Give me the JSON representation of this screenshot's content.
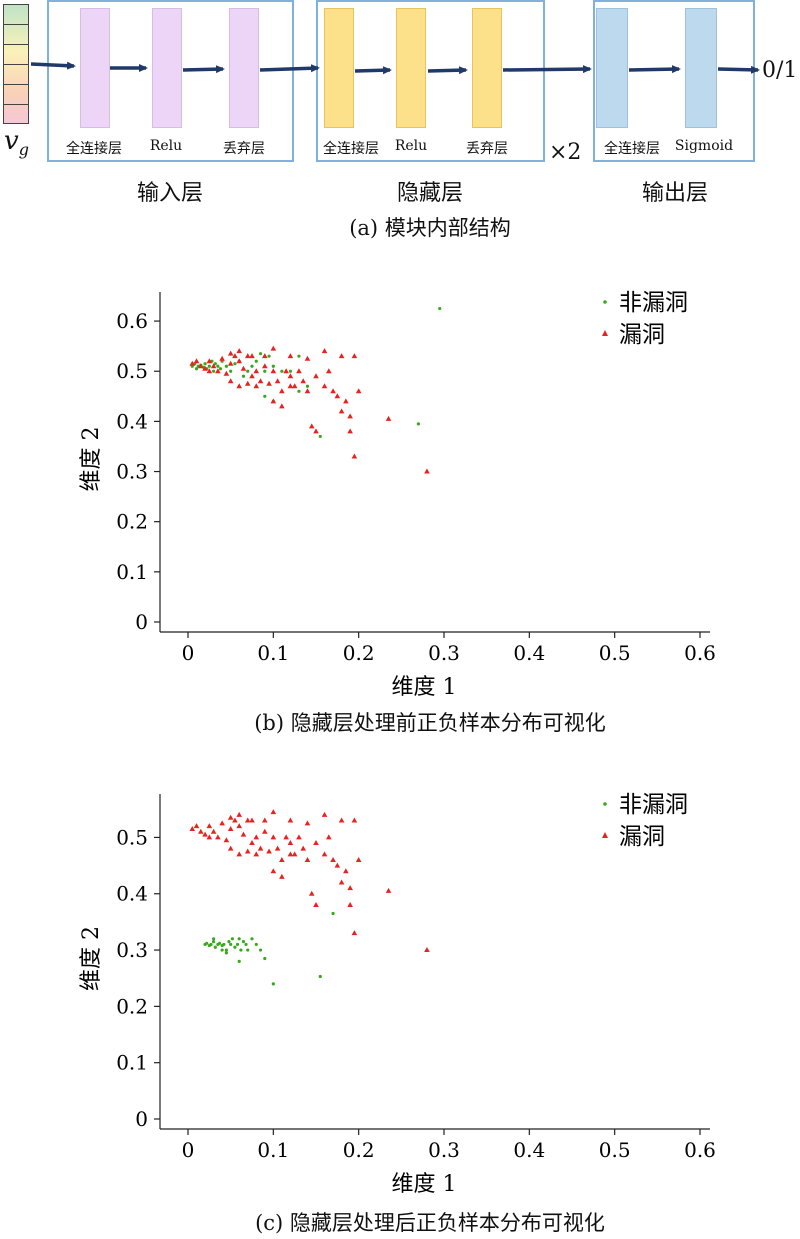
{
  "part_a": {
    "input_symbol": "v",
    "input_subscript": "g",
    "input_layer": {
      "name": "输入层",
      "items": [
        "全连接层",
        "Relu",
        "丢弃层"
      ]
    },
    "hidden_layer": {
      "name": "隐藏层",
      "items": [
        "全连接层",
        "Relu",
        "丢弃层"
      ],
      "repeat": "×2"
    },
    "output_layer": {
      "name": "输出层",
      "items": [
        "全连接层",
        "Sigmoid"
      ]
    },
    "output_label": "0/1",
    "caption": "(a) 模块内部结构",
    "colors": {
      "input": "#ecd5f6",
      "hidden": "#fde08a",
      "output": "#bcd9ee",
      "arrow": "#1f3a68",
      "frame": "#7fb0df"
    }
  },
  "chart_data": [
    {
      "type": "scatter",
      "caption": "(b) 隐藏层处理前正负样本分布可视化",
      "xlabel": "维度 1",
      "ylabel": "维度 2",
      "xlim": [
        0,
        0.6
      ],
      "ylim": [
        0,
        0.65
      ],
      "xticks": [
        "0",
        "0.1",
        "0.2",
        "0.3",
        "0.4",
        "0.5",
        "0.6"
      ],
      "yticks": [
        "0",
        "0.1",
        "0.2",
        "0.3",
        "0.4",
        "0.5",
        "0.6"
      ],
      "legend_position": "top-right",
      "series": [
        {
          "name": "非漏洞",
          "marker": "dot",
          "color": "#3aa81c",
          "points": [
            [
              0.005,
              0.51
            ],
            [
              0.008,
              0.515
            ],
            [
              0.01,
              0.505
            ],
            [
              0.012,
              0.51
            ],
            [
              0.015,
              0.512
            ],
            [
              0.018,
              0.508
            ],
            [
              0.02,
              0.515
            ],
            [
              0.022,
              0.505
            ],
            [
              0.025,
              0.51
            ],
            [
              0.028,
              0.52
            ],
            [
              0.03,
              0.5
            ],
            [
              0.032,
              0.515
            ],
            [
              0.035,
              0.51
            ],
            [
              0.038,
              0.505
            ],
            [
              0.04,
              0.52
            ],
            [
              0.045,
              0.51
            ],
            [
              0.05,
              0.5
            ],
            [
              0.055,
              0.515
            ],
            [
              0.06,
              0.52
            ],
            [
              0.065,
              0.49
            ],
            [
              0.07,
              0.5
            ],
            [
              0.075,
              0.51
            ],
            [
              0.08,
              0.52
            ],
            [
              0.085,
              0.535
            ],
            [
              0.09,
              0.5
            ],
            [
              0.095,
              0.53
            ],
            [
              0.1,
              0.51
            ],
            [
              0.11,
              0.5
            ],
            [
              0.12,
              0.5
            ],
            [
              0.13,
              0.53
            ],
            [
              0.14,
              0.47
            ],
            [
              0.09,
              0.45
            ],
            [
              0.1,
              0.44
            ],
            [
              0.13,
              0.46
            ],
            [
              0.155,
              0.37
            ],
            [
              0.27,
              0.395
            ],
            [
              0.295,
              0.625
            ]
          ]
        },
        {
          "name": "漏洞",
          "marker": "triangle",
          "color": "#e8231f",
          "points": [
            [
              0.005,
              0.515
            ],
            [
              0.01,
              0.52
            ],
            [
              0.015,
              0.51
            ],
            [
              0.02,
              0.505
            ],
            [
              0.025,
              0.52
            ],
            [
              0.03,
              0.51
            ],
            [
              0.035,
              0.5
            ],
            [
              0.04,
              0.525
            ],
            [
              0.045,
              0.495
            ],
            [
              0.05,
              0.515
            ],
            [
              0.055,
              0.53
            ],
            [
              0.06,
              0.52
            ],
            [
              0.065,
              0.505
            ],
            [
              0.07,
              0.53
            ],
            [
              0.075,
              0.49
            ],
            [
              0.08,
              0.5
            ],
            [
              0.085,
              0.48
            ],
            [
              0.09,
              0.51
            ],
            [
              0.095,
              0.475
            ],
            [
              0.1,
              0.5
            ],
            [
              0.105,
              0.48
            ],
            [
              0.11,
              0.46
            ],
            [
              0.115,
              0.5
            ],
            [
              0.12,
              0.49
            ],
            [
              0.125,
              0.47
            ],
            [
              0.13,
              0.5
            ],
            [
              0.135,
              0.48
            ],
            [
              0.14,
              0.46
            ],
            [
              0.05,
              0.48
            ],
            [
              0.06,
              0.47
            ],
            [
              0.07,
              0.475
            ],
            [
              0.08,
              0.47
            ],
            [
              0.1,
              0.44
            ],
            [
              0.11,
              0.43
            ],
            [
              0.12,
              0.47
            ],
            [
              0.15,
              0.49
            ],
            [
              0.16,
              0.47
            ],
            [
              0.165,
              0.5
            ],
            [
              0.17,
              0.46
            ],
            [
              0.175,
              0.45
            ],
            [
              0.18,
              0.42
            ],
            [
              0.185,
              0.44
            ],
            [
              0.19,
              0.41
            ],
            [
              0.2,
              0.46
            ],
            [
              0.195,
              0.53
            ],
            [
              0.18,
              0.53
            ],
            [
              0.16,
              0.54
            ],
            [
              0.14,
              0.525
            ],
            [
              0.12,
              0.53
            ],
            [
              0.09,
              0.53
            ],
            [
              0.075,
              0.53
            ],
            [
              0.06,
              0.54
            ],
            [
              0.05,
              0.535
            ],
            [
              0.145,
              0.39
            ],
            [
              0.15,
              0.38
            ],
            [
              0.19,
              0.38
            ],
            [
              0.195,
              0.33
            ],
            [
              0.235,
              0.405
            ],
            [
              0.28,
              0.3
            ],
            [
              0.1,
              0.545
            ],
            [
              0.025,
              0.5
            ]
          ]
        }
      ]
    },
    {
      "type": "scatter",
      "caption": "(c) 隐藏层处理后正负样本分布可视化",
      "xlabel": "维度 1",
      "ylabel": "维度 2",
      "xlim": [
        0,
        0.6
      ],
      "ylim": [
        0,
        0.57
      ],
      "xticks": [
        "0",
        "0.1",
        "0.2",
        "0.3",
        "0.4",
        "0.5",
        "0.6"
      ],
      "yticks": [
        "0",
        "0.1",
        "0.2",
        "0.3",
        "0.4",
        "0.5"
      ],
      "legend_position": "top-right",
      "series": [
        {
          "name": "非漏洞",
          "marker": "dot",
          "color": "#3aa81c",
          "points": [
            [
              0.02,
              0.31
            ],
            [
              0.022,
              0.312
            ],
            [
              0.025,
              0.308
            ],
            [
              0.027,
              0.31
            ],
            [
              0.03,
              0.315
            ],
            [
              0.032,
              0.305
            ],
            [
              0.035,
              0.31
            ],
            [
              0.037,
              0.312
            ],
            [
              0.04,
              0.308
            ],
            [
              0.042,
              0.31
            ],
            [
              0.045,
              0.3
            ],
            [
              0.048,
              0.315
            ],
            [
              0.05,
              0.31
            ],
            [
              0.052,
              0.32
            ],
            [
              0.055,
              0.305
            ],
            [
              0.058,
              0.31
            ],
            [
              0.06,
              0.32
            ],
            [
              0.062,
              0.3
            ],
            [
              0.065,
              0.315
            ],
            [
              0.068,
              0.31
            ],
            [
              0.07,
              0.3
            ],
            [
              0.075,
              0.32
            ],
            [
              0.08,
              0.31
            ],
            [
              0.085,
              0.3
            ],
            [
              0.09,
              0.285
            ],
            [
              0.06,
              0.28
            ],
            [
              0.045,
              0.295
            ],
            [
              0.04,
              0.3
            ],
            [
              0.1,
              0.24
            ],
            [
              0.155,
              0.253
            ],
            [
              0.17,
              0.365
            ],
            [
              0.03,
              0.32
            ]
          ]
        },
        {
          "name": "漏洞",
          "marker": "triangle",
          "color": "#e8231f",
          "points": [
            [
              0.005,
              0.515
            ],
            [
              0.01,
              0.52
            ],
            [
              0.015,
              0.51
            ],
            [
              0.02,
              0.505
            ],
            [
              0.025,
              0.52
            ],
            [
              0.03,
              0.51
            ],
            [
              0.035,
              0.5
            ],
            [
              0.04,
              0.525
            ],
            [
              0.045,
              0.495
            ],
            [
              0.05,
              0.515
            ],
            [
              0.055,
              0.53
            ],
            [
              0.06,
              0.52
            ],
            [
              0.065,
              0.505
            ],
            [
              0.07,
              0.53
            ],
            [
              0.075,
              0.49
            ],
            [
              0.08,
              0.5
            ],
            [
              0.085,
              0.48
            ],
            [
              0.09,
              0.51
            ],
            [
              0.095,
              0.475
            ],
            [
              0.1,
              0.5
            ],
            [
              0.105,
              0.48
            ],
            [
              0.11,
              0.46
            ],
            [
              0.115,
              0.5
            ],
            [
              0.12,
              0.49
            ],
            [
              0.125,
              0.47
            ],
            [
              0.13,
              0.5
            ],
            [
              0.135,
              0.48
            ],
            [
              0.14,
              0.46
            ],
            [
              0.05,
              0.48
            ],
            [
              0.06,
              0.47
            ],
            [
              0.07,
              0.475
            ],
            [
              0.08,
              0.47
            ],
            [
              0.1,
              0.44
            ],
            [
              0.11,
              0.43
            ],
            [
              0.12,
              0.47
            ],
            [
              0.15,
              0.49
            ],
            [
              0.16,
              0.47
            ],
            [
              0.165,
              0.5
            ],
            [
              0.17,
              0.46
            ],
            [
              0.175,
              0.45
            ],
            [
              0.18,
              0.42
            ],
            [
              0.185,
              0.44
            ],
            [
              0.19,
              0.41
            ],
            [
              0.2,
              0.46
            ],
            [
              0.195,
              0.53
            ],
            [
              0.18,
              0.53
            ],
            [
              0.16,
              0.54
            ],
            [
              0.14,
              0.525
            ],
            [
              0.12,
              0.53
            ],
            [
              0.09,
              0.53
            ],
            [
              0.075,
              0.53
            ],
            [
              0.06,
              0.54
            ],
            [
              0.05,
              0.535
            ],
            [
              0.145,
              0.4
            ],
            [
              0.15,
              0.38
            ],
            [
              0.19,
              0.38
            ],
            [
              0.195,
              0.33
            ],
            [
              0.235,
              0.405
            ],
            [
              0.28,
              0.3
            ],
            [
              0.1,
              0.545
            ],
            [
              0.025,
              0.5
            ]
          ]
        }
      ]
    }
  ]
}
